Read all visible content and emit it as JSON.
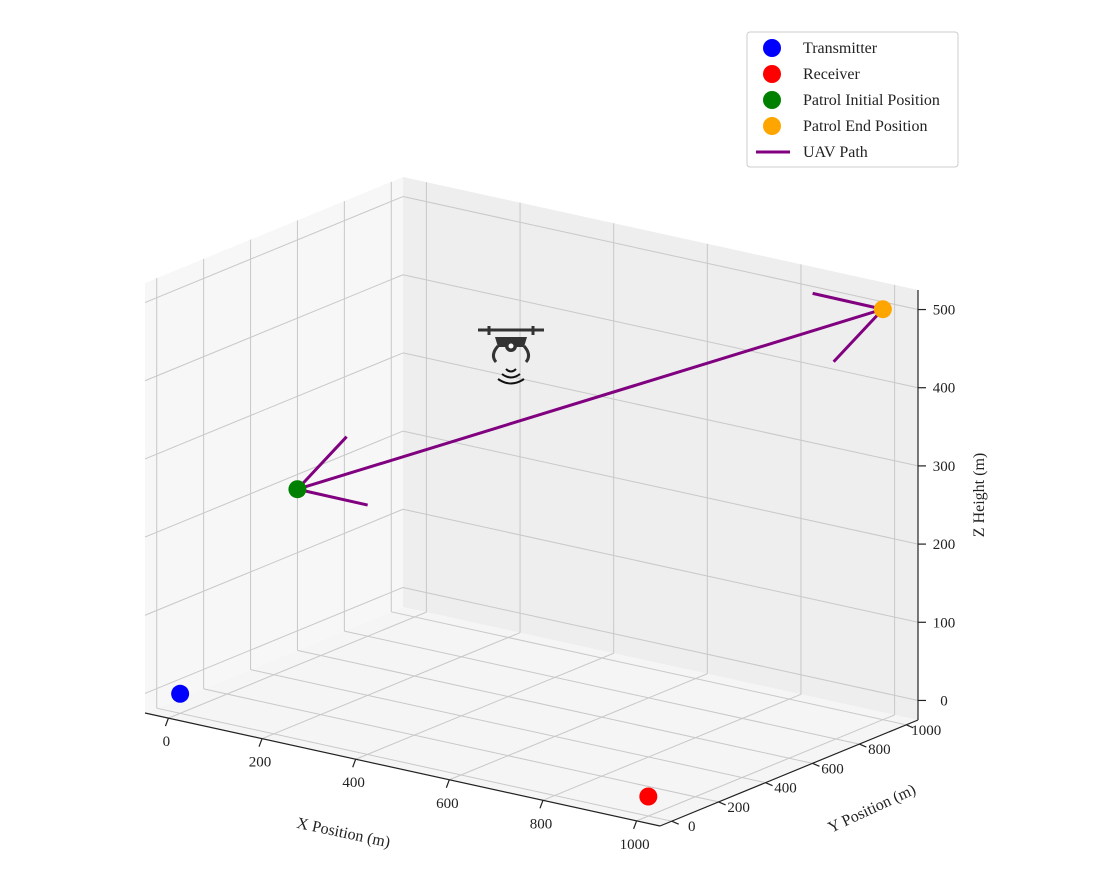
{
  "chart_data": {
    "type": "scatter",
    "projection": "3d",
    "xlabel": "X Position (m)",
    "ylabel": "Y Position (m)",
    "zlabel": "Z Height (m)",
    "xlim": [
      -50,
      1050
    ],
    "ylim": [
      -50,
      1050
    ],
    "zlim": [
      -25,
      525
    ],
    "xticks": [
      0,
      200,
      400,
      600,
      800,
      1000
    ],
    "yticks": [
      0,
      200,
      400,
      600,
      800,
      1000
    ],
    "zticks": [
      0,
      100,
      200,
      300,
      400,
      500
    ],
    "grid": true,
    "legend_position": "top-right",
    "series": [
      {
        "name": "Transmitter",
        "kind": "point",
        "color": "#0000ff",
        "points": [
          {
            "x": 0,
            "y": 0,
            "z": 0
          }
        ]
      },
      {
        "name": "Receiver",
        "kind": "point",
        "color": "#ff0000",
        "points": [
          {
            "x": 1000,
            "y": 0,
            "z": 0
          }
        ]
      },
      {
        "name": "Patrol Initial Position",
        "kind": "point",
        "color": "#008000",
        "points": [
          {
            "x": 0,
            "y": 500,
            "z": 200
          }
        ]
      },
      {
        "name": "Patrol End Position",
        "kind": "point",
        "color": "#ffa500",
        "points": [
          {
            "x": 1000,
            "y": 1000,
            "z": 500
          }
        ]
      },
      {
        "name": "UAV Path",
        "kind": "line",
        "color": "#800080",
        "points": [
          {
            "x": 0,
            "y": 500,
            "z": 200
          },
          {
            "x": 1000,
            "y": 1000,
            "z": 500
          }
        ],
        "arrows": "both"
      }
    ],
    "annotations": [
      {
        "kind": "icon",
        "icon": "drone-icon",
        "x": 500,
        "y": 750,
        "z": 350
      }
    ]
  }
}
